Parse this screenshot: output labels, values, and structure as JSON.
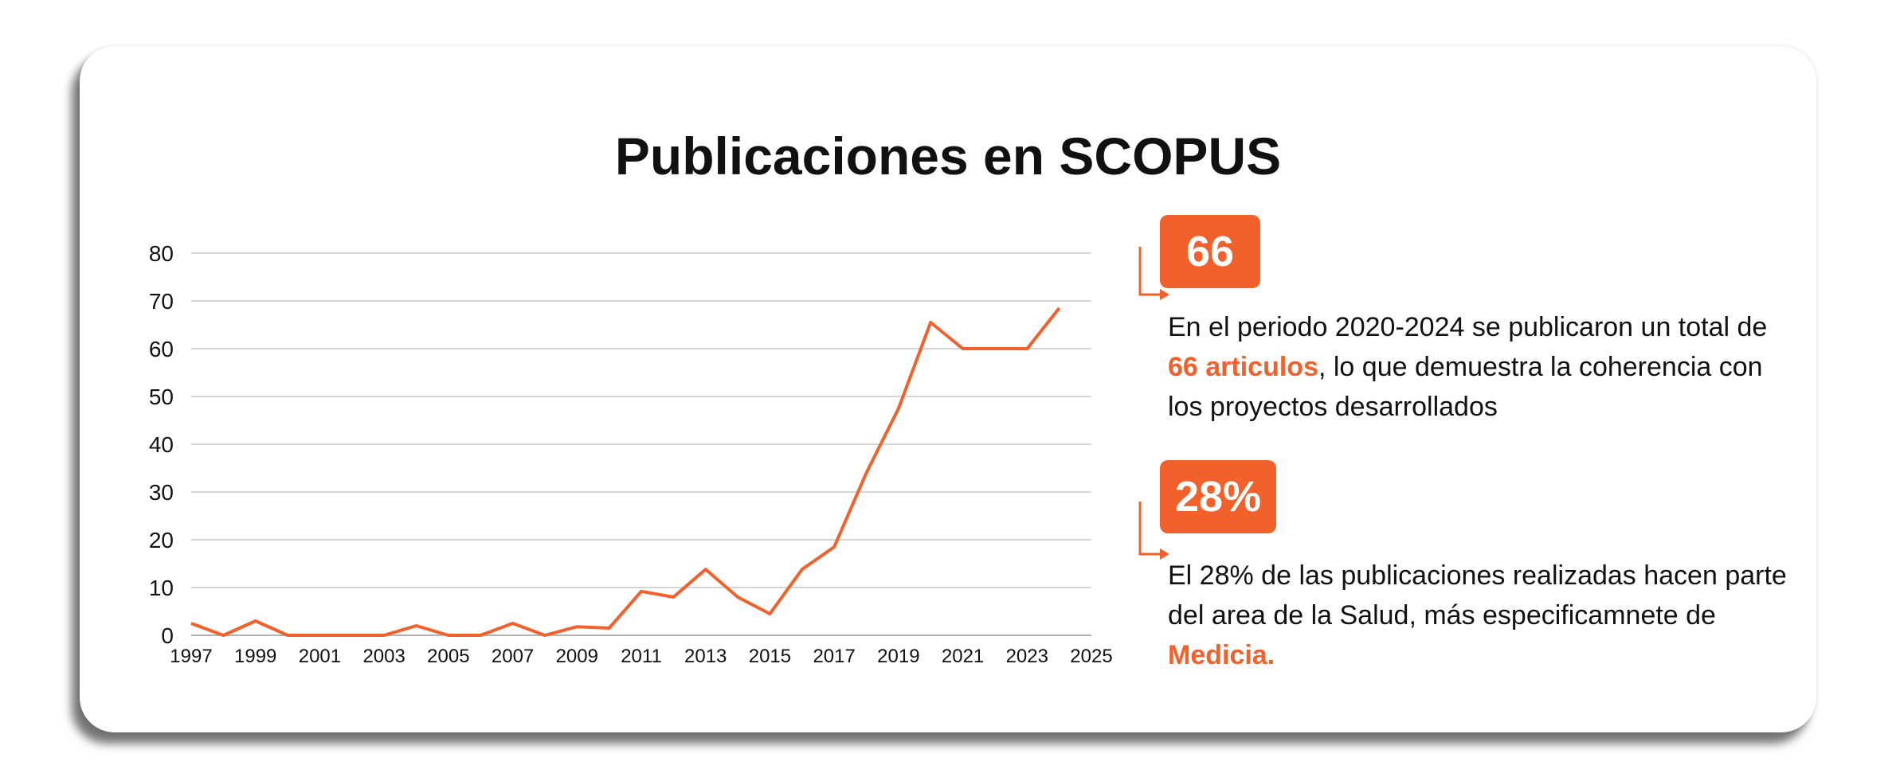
{
  "title": "Publicaciones en SCOPUS",
  "colors": {
    "accent": "#f2612c",
    "grid": "#c8c8c8",
    "text": "#111111"
  },
  "chart_data": {
    "type": "line",
    "x": [
      1997,
      1998,
      1999,
      2000,
      2001,
      2002,
      2003,
      2004,
      2005,
      2006,
      2007,
      2008,
      2009,
      2010,
      2011,
      2012,
      2013,
      2014,
      2015,
      2016,
      2017,
      2018,
      2019,
      2020,
      2021,
      2022,
      2023,
      2024
    ],
    "series": [
      {
        "values": [
          2.5,
          0,
          3,
          0,
          0,
          0,
          0,
          2,
          0,
          0,
          2.5,
          0,
          1.8,
          1.5,
          9.2,
          8,
          13.8,
          8,
          4.5,
          13.8,
          18.5,
          34,
          47.5,
          65.5,
          60,
          60,
          60,
          68.5
        ]
      }
    ],
    "xticks": [
      "1997",
      "1999",
      "2001",
      "2003",
      "2005",
      "2007",
      "2009",
      "2011",
      "2013",
      "2015",
      "2017",
      "2019",
      "2021",
      "2023",
      "2025"
    ],
    "yticks": [
      "0",
      "10",
      "20",
      "30",
      "40",
      "50",
      "60",
      "70",
      "80"
    ],
    "xlim": [
      1997,
      2025
    ],
    "ylim": [
      0,
      80
    ],
    "grid": true
  },
  "stat1": {
    "value": "66",
    "text_before": "En el periodo 2020-2024 se publicaron un total de ",
    "highlight": "66 articulos",
    "text_after": ", lo que demuestra la coherencia con los proyectos desarrollados"
  },
  "stat2": {
    "value": "28%",
    "text_before": "El 28% de las publicaciones realizadas hacen parte del area de la Salud, más especificamnete de ",
    "highlight": "Medicia.",
    "text_after": ""
  }
}
